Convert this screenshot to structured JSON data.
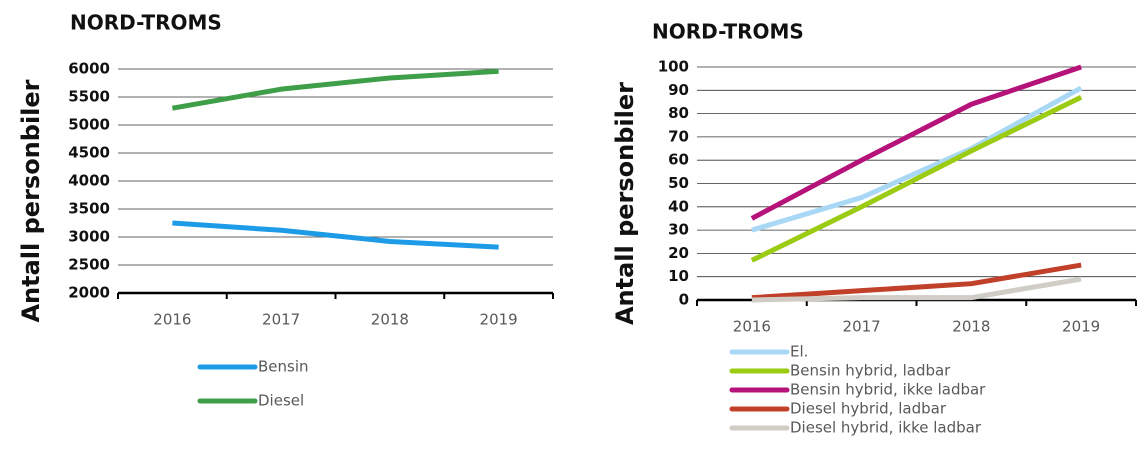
{
  "chart_data": [
    {
      "type": "line",
      "title": "NORD-TROMS",
      "y_label": "Antall personbiler",
      "categories": [
        "2016",
        "2017",
        "2018",
        "2019"
      ],
      "series": [
        {
          "name": "Bensin",
          "color": "#1e9be6",
          "values": [
            3250,
            3120,
            2920,
            2820
          ]
        },
        {
          "name": "Diesel",
          "color": "#3f9e48",
          "values": [
            5300,
            5640,
            5840,
            5960
          ]
        }
      ],
      "ylim": [
        2000,
        6000
      ],
      "yticks": [
        2000,
        2500,
        3000,
        3500,
        4000,
        4500,
        5000,
        5500,
        6000
      ],
      "grid": true
    },
    {
      "type": "line",
      "title": "NORD-TROMS",
      "y_label": "Antall personbiler",
      "categories": [
        "2016",
        "2017",
        "2018",
        "2019"
      ],
      "series": [
        {
          "name": "El.",
          "color": "#a8d8f5",
          "values": [
            30,
            44,
            65,
            91
          ]
        },
        {
          "name": "Bensin hybrid, ladbar",
          "color": "#9ccb14",
          "values": [
            17,
            40,
            64,
            87
          ]
        },
        {
          "name": "Bensin hybrid, ikke ladbar",
          "color": "#b5127a",
          "values": [
            35,
            60,
            84,
            100
          ]
        },
        {
          "name": "Diesel hybrid, ladbar",
          "color": "#c0402a",
          "values": [
            1,
            4,
            7,
            15
          ]
        },
        {
          "name": "Diesel hybrid, ikke ladbar",
          "color": "#d0cdc6",
          "values": [
            0,
            1,
            1,
            9
          ]
        }
      ],
      "ylim": [
        0,
        100
      ],
      "yticks": [
        0,
        10,
        20,
        30,
        40,
        50,
        60,
        70,
        80,
        90,
        100
      ],
      "grid": true
    }
  ]
}
